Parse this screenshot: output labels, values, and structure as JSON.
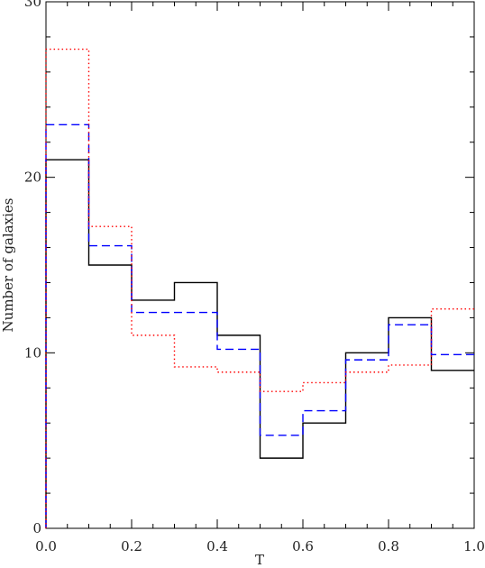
{
  "chart_data": {
    "type": "line",
    "subtype": "step-histogram",
    "title": "",
    "xlabel": "T",
    "ylabel": "Number of galaxies",
    "xlim": [
      0.0,
      1.0
    ],
    "ylim": [
      0,
      30
    ],
    "x_ticks": [
      "0.0",
      "0.2",
      "0.4",
      "0.6",
      "0.8",
      "1.0"
    ],
    "y_ticks": [
      "0",
      "10",
      "20",
      "30"
    ],
    "bin_edges": [
      0.0,
      0.1,
      0.2,
      0.3,
      0.4,
      0.5,
      0.6,
      0.7,
      0.8,
      0.9,
      1.0
    ],
    "grid": false,
    "legend": "none",
    "series": [
      {
        "values": [
          21,
          15,
          13,
          14,
          11,
          4,
          6,
          10,
          12,
          9
        ],
        "color": "#000000",
        "style": "solid"
      },
      {
        "values": [
          23,
          16.1,
          12.3,
          12.3,
          10.2,
          5.3,
          6.7,
          9.6,
          11.6,
          9.9
        ],
        "color": "#0000ff",
        "style": "dashed"
      },
      {
        "values": [
          27.3,
          17.2,
          11,
          9.2,
          8.9,
          7.8,
          8.3,
          8.9,
          9.3,
          12.5
        ],
        "color": "#ff0000",
        "style": "dotted"
      }
    ]
  }
}
